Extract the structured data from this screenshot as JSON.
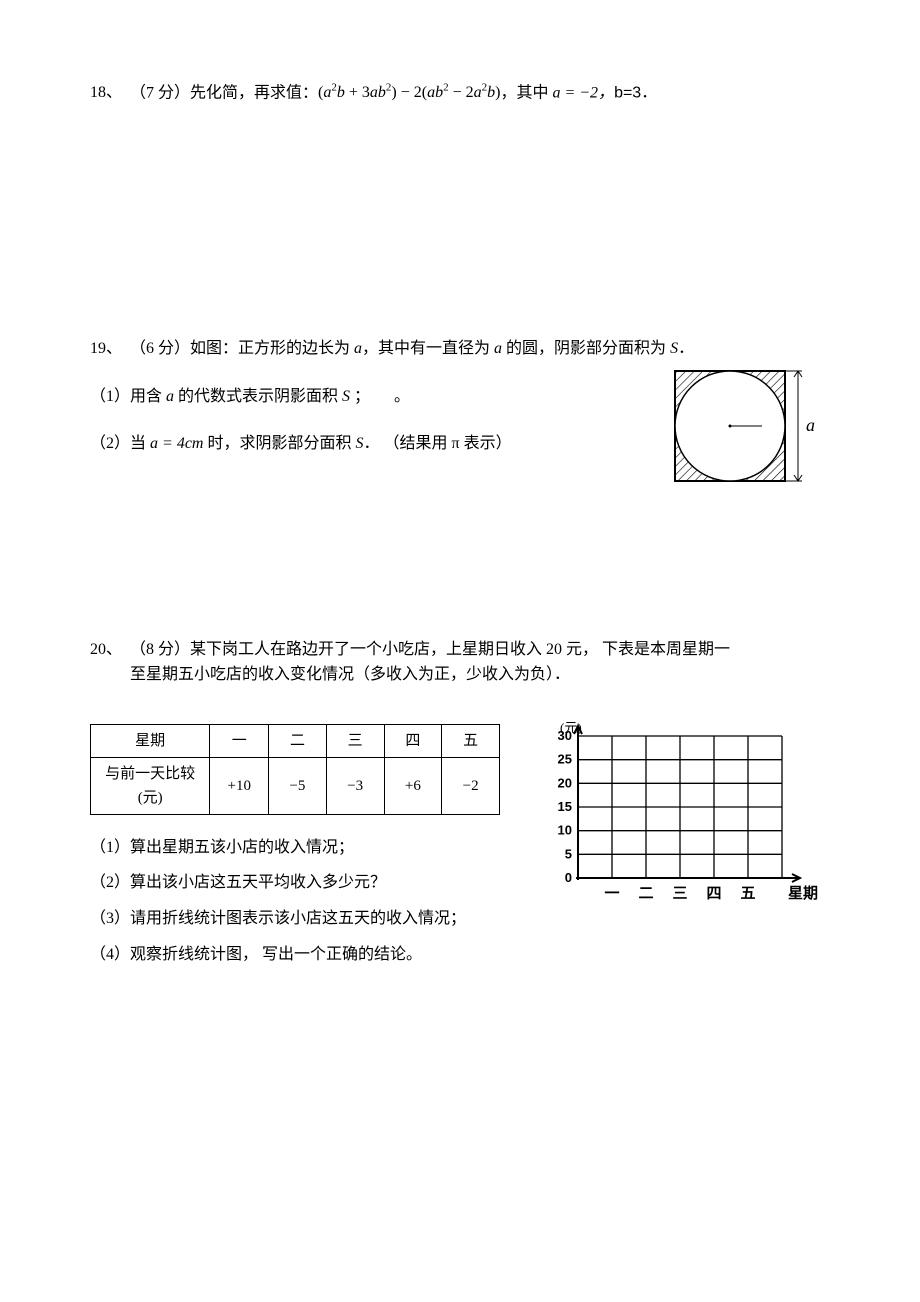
{
  "q18": {
    "num": "18、",
    "points": "（7 分）",
    "lead": "先化简，再求值：",
    "expr_html": "(<i>a</i><sup>2</sup><i>b</i> + 3<i>ab</i><sup>2</sup>) − 2(<i>ab</i><sup>2</sup> − 2<i>a</i><sup>2</sup><i>b</i>)",
    "tail_a": "，其中 ",
    "a_eq": "a = −2，",
    "b_eq": "b=3．"
  },
  "q19": {
    "num": "19、",
    "points": "（6 分）",
    "stem1": "如图：正方形的边长为 ",
    "a": "a",
    "stem2": "，其中有一直径为 ",
    "stem3": " 的圆，阴影部分面积为 ",
    "S": "S",
    "period": "．",
    "sub1_pre": "（1）用含 ",
    "sub1_mid": " 的代数式表示阴影面积 ",
    "sub1_end": " ；　　。",
    "sub2_pre": "（2）当 ",
    "a_eq_4": "a = 4cm",
    "sub2_mid": " 时，求阴影部分面积 ",
    "sub2_end": "．  （结果用 π 表示）",
    "figure": {
      "side": "a",
      "box_color": "#000000",
      "bg": "#ffffff"
    }
  },
  "q20": {
    "num": "20、",
    "points": "（8 分）",
    "stem_l1": "某下岗工人在路边开了一个小吃店，上星期日收入 20 元，  下表是本周星期一",
    "stem_l2": "至星期五小吃店的收入变化情况（多收入为正，少收入为负）．",
    "table": {
      "row1_label": "星期",
      "row1_vals": [
        "一",
        "二",
        "三",
        "四",
        "五"
      ],
      "row2_label": "与前一天比较(元)",
      "row2_vals": [
        "+10",
        "−5",
        "−3",
        "+6",
        "−2"
      ]
    },
    "subs": [
      "（1）算出星期五该小店的收入情况；",
      "（2）算出该小店这五天平均收入多少元？",
      "（3）请用折线统计图表示该小店这五天的收入情况；",
      "（4）观察折线统计图，  写出一个正确的结论。"
    ],
    "chart": {
      "y_label": "(元)",
      "y_ticks": [
        "30",
        "25",
        "20",
        "15",
        "10",
        "5",
        "0"
      ],
      "y_max": 30,
      "y_step": 5,
      "x_ticks": [
        "一",
        "二",
        "三",
        "四",
        "五"
      ],
      "x_label": "星期",
      "grid_color": "#000000",
      "bg": "#ffffff",
      "tick_fontsize": 13
    }
  }
}
